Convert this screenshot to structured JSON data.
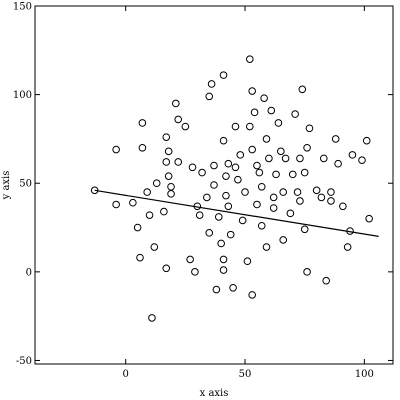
{
  "chart_data": {
    "type": "scatter",
    "xlabel": "x axis",
    "ylabel": "y axis",
    "xlim": [
      -38,
      112
    ],
    "ylim": [
      -52,
      150
    ],
    "x_ticks": [
      0,
      50,
      100
    ],
    "y_ticks": [
      -50,
      0,
      50,
      100,
      150
    ],
    "grid": false,
    "colors": {
      "marker": "#000000",
      "line": "#000000",
      "background": "#ffffff"
    },
    "series": [
      {
        "style": "open-circles",
        "points": [
          [
            -13,
            46
          ],
          [
            -4,
            69
          ],
          [
            -4,
            38
          ],
          [
            3,
            39
          ],
          [
            5,
            25
          ],
          [
            6,
            8
          ],
          [
            7,
            84
          ],
          [
            7,
            70
          ],
          [
            9,
            45
          ],
          [
            10,
            32
          ],
          [
            11,
            -26
          ],
          [
            12,
            14
          ],
          [
            13,
            50
          ],
          [
            16,
            34
          ],
          [
            17,
            76
          ],
          [
            17,
            62
          ],
          [
            17,
            2
          ],
          [
            18,
            68
          ],
          [
            18,
            54
          ],
          [
            19,
            48
          ],
          [
            19,
            44
          ],
          [
            21,
            95
          ],
          [
            22,
            86
          ],
          [
            22,
            62
          ],
          [
            25,
            82
          ],
          [
            27,
            7
          ],
          [
            28,
            59
          ],
          [
            29,
            0
          ],
          [
            30,
            37
          ],
          [
            31,
            32
          ],
          [
            32,
            56
          ],
          [
            34,
            42
          ],
          [
            35,
            99
          ],
          [
            35,
            22
          ],
          [
            36,
            106
          ],
          [
            37,
            60
          ],
          [
            37,
            49
          ],
          [
            38,
            -10
          ],
          [
            39,
            31
          ],
          [
            40,
            16
          ],
          [
            41,
            111
          ],
          [
            41,
            74
          ],
          [
            41,
            7
          ],
          [
            41,
            1
          ],
          [
            42,
            54
          ],
          [
            42,
            43
          ],
          [
            43,
            61
          ],
          [
            43,
            37
          ],
          [
            44,
            21
          ],
          [
            45,
            -9
          ],
          [
            46,
            82
          ],
          [
            46,
            59
          ],
          [
            47,
            52
          ],
          [
            48,
            66
          ],
          [
            49,
            29
          ],
          [
            50,
            45
          ],
          [
            51,
            6
          ],
          [
            52,
            120
          ],
          [
            52,
            82
          ],
          [
            53,
            102
          ],
          [
            53,
            69
          ],
          [
            53,
            -13
          ],
          [
            54,
            90
          ],
          [
            55,
            60
          ],
          [
            55,
            38
          ],
          [
            56,
            56
          ],
          [
            57,
            48
          ],
          [
            57,
            26
          ],
          [
            58,
            98
          ],
          [
            59,
            75
          ],
          [
            59,
            14
          ],
          [
            60,
            64
          ],
          [
            61,
            91
          ],
          [
            62,
            42
          ],
          [
            62,
            36
          ],
          [
            63,
            55
          ],
          [
            64,
            84
          ],
          [
            65,
            68
          ],
          [
            66,
            45
          ],
          [
            66,
            18
          ],
          [
            67,
            64
          ],
          [
            69,
            33
          ],
          [
            70,
            55
          ],
          [
            71,
            89
          ],
          [
            72,
            45
          ],
          [
            73,
            64
          ],
          [
            73,
            40
          ],
          [
            74,
            103
          ],
          [
            75,
            56
          ],
          [
            75,
            24
          ],
          [
            76,
            70
          ],
          [
            76,
            0
          ],
          [
            77,
            81
          ],
          [
            80,
            46
          ],
          [
            82,
            42
          ],
          [
            83,
            64
          ],
          [
            84,
            -5
          ],
          [
            86,
            45
          ],
          [
            86,
            40
          ],
          [
            88,
            75
          ],
          [
            89,
            61
          ],
          [
            91,
            37
          ],
          [
            93,
            14
          ],
          [
            94,
            23
          ],
          [
            95,
            66
          ],
          [
            99,
            63
          ],
          [
            101,
            74
          ],
          [
            102,
            30
          ]
        ]
      }
    ],
    "fit_line": {
      "x": [
        -13,
        106
      ],
      "y": [
        46,
        20
      ]
    }
  }
}
